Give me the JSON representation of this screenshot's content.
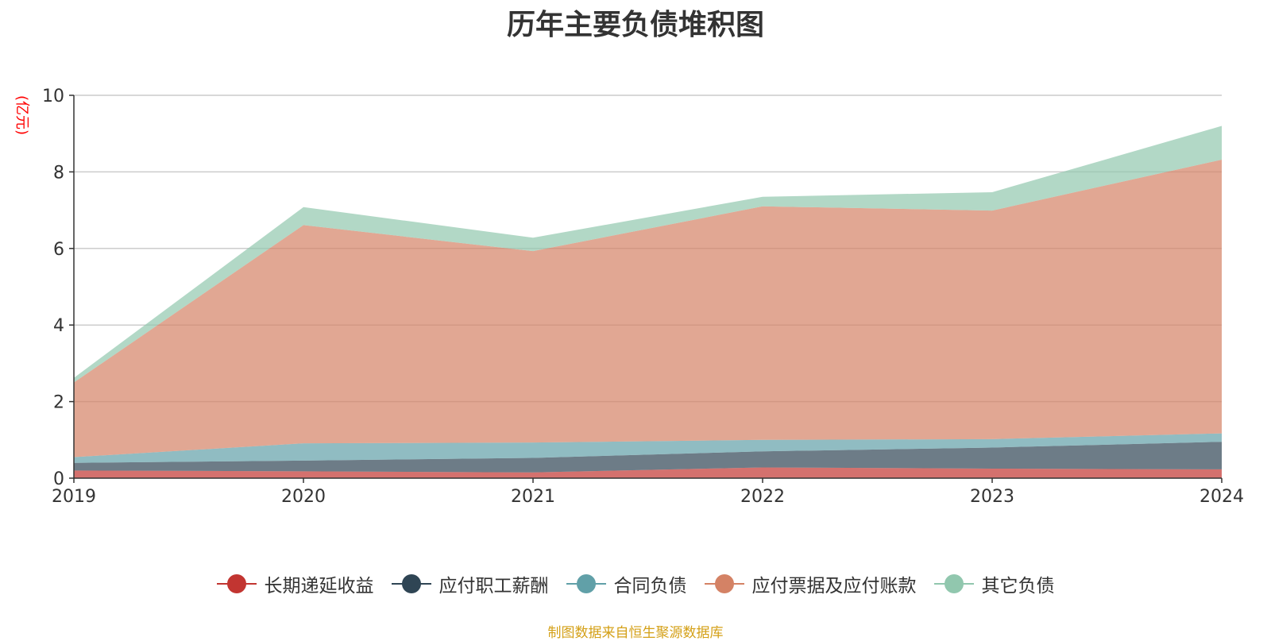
{
  "chart_data": {
    "type": "area",
    "stacked": true,
    "title": "历年主要负债堆积图",
    "unit_label": "(亿元)",
    "x": [
      "2019",
      "2020",
      "2021",
      "2022",
      "2023",
      "2024"
    ],
    "ylim": [
      0,
      10
    ],
    "yticks": [
      0,
      2,
      4,
      6,
      8,
      10
    ],
    "grid": true,
    "legend_position": "bottom",
    "series": [
      {
        "name": "长期递延收益",
        "color": "#c23531",
        "values": [
          0.2,
          0.18,
          0.15,
          0.28,
          0.25,
          0.23
        ]
      },
      {
        "name": "应付职工薪酬",
        "color": "#2f4554",
        "values": [
          0.2,
          0.28,
          0.38,
          0.42,
          0.55,
          0.72
        ]
      },
      {
        "name": "合同负债",
        "color": "#61a0a8",
        "values": [
          0.15,
          0.45,
          0.4,
          0.3,
          0.22,
          0.22
        ]
      },
      {
        "name": "应付票据及应付账款",
        "color": "#d48265",
        "values": [
          1.95,
          5.7,
          5.0,
          6.1,
          5.97,
          7.15
        ]
      },
      {
        "name": "其它负债",
        "color": "#91c7ae",
        "values": [
          0.12,
          0.47,
          0.35,
          0.25,
          0.48,
          0.88
        ]
      }
    ]
  },
  "footer": {
    "source": "制图数据来自恒生聚源数据库"
  }
}
